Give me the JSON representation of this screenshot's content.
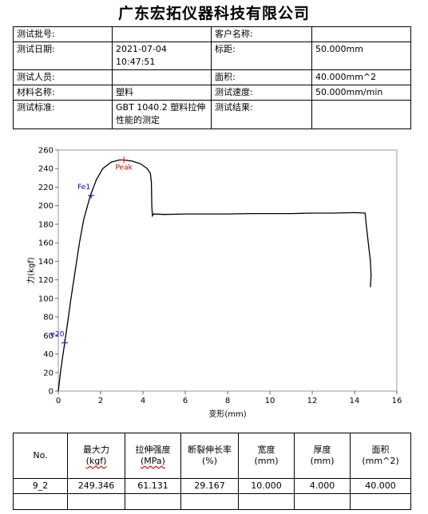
{
  "title": "广东宏拓仪器科技有限公司",
  "info": {
    "batch_label": "测试批号:",
    "batch_value": "",
    "customer_label": "客户名称:",
    "customer_value": "",
    "date_label": "测试日期:",
    "date_value": "2021-07-04",
    "time_value": "10:47:51",
    "gauge_label": "标距:",
    "gauge_value": "50.000mm",
    "operator_label": "测试人员:",
    "operator_value": "",
    "area_label": "面积:",
    "area_value": "40.000mm^2",
    "material_label": "材料名称:",
    "material_value": "塑料",
    "speed_label": "测试速度:",
    "speed_value": "50.000mm/min",
    "standard_label": "测试标准:",
    "standard_value": "GBT 1040.2 塑料拉伸性能的测定",
    "result_label": "测试结果:",
    "result_value": ""
  },
  "chart_data": {
    "type": "line",
    "xlabel": "变形(mm)",
    "ylabel": "力(kgf)",
    "xlim": [
      0,
      16
    ],
    "ylim": [
      0,
      260
    ],
    "xticks": [
      0,
      2,
      4,
      6,
      8,
      10,
      12,
      14,
      16
    ],
    "yticks": [
      0,
      20,
      40,
      60,
      80,
      100,
      120,
      140,
      160,
      180,
      200,
      220,
      240,
      260
    ],
    "grid": false,
    "line_color": "#000000",
    "x": [
      0,
      0.1,
      0.2,
      0.3,
      0.45,
      0.6,
      0.8,
      1.0,
      1.2,
      1.5,
      1.8,
      2.1,
      2.5,
      2.9,
      3.1,
      3.5,
      3.9,
      4.2,
      4.35,
      4.4,
      4.42,
      4.45,
      4.5,
      5.0,
      6.0,
      7.0,
      8.0,
      9.0,
      10.0,
      11.0,
      12.0,
      13.0,
      14.0,
      14.5,
      14.55,
      14.65,
      14.75,
      14.78,
      14.75
    ],
    "y": [
      0,
      20,
      36,
      52,
      75,
      100,
      130,
      160,
      185,
      210,
      228,
      240,
      247,
      249.3,
      249.2,
      248,
      245,
      240,
      235,
      225,
      200,
      189,
      191,
      190.5,
      191,
      191,
      191,
      191.5,
      191.5,
      191.5,
      192,
      192,
      192.5,
      192,
      180,
      160,
      140,
      125,
      112
    ],
    "markers": [
      {
        "label": "e20",
        "x": 0.3,
        "y": 52,
        "color": "#0000c0"
      },
      {
        "label": "Fe1",
        "x": 1.55,
        "y": 211,
        "color": "#0000c0"
      },
      {
        "label": "Peak",
        "x": 3.1,
        "y": 249.3,
        "color": "#d00000"
      }
    ]
  },
  "results": {
    "headers": {
      "no": "No.",
      "max_force_1": "最大力",
      "max_force_2": "(kgf)",
      "tensile_1": "拉伸强度",
      "tensile_2": "(MPa)",
      "break_1": "断裂伸长率",
      "break_2": "(%)",
      "width_1": "宽度",
      "width_2": "(mm)",
      "thickness_1": "厚度",
      "thickness_2": "(mm)",
      "area_1": "面积",
      "area_2": "(mm^2)"
    },
    "row": {
      "no": "9_2",
      "max_force": "249.346",
      "tensile": "61.131",
      "break": "29.167",
      "width": "10.000",
      "thickness": "4.000",
      "area": "40.000"
    }
  }
}
